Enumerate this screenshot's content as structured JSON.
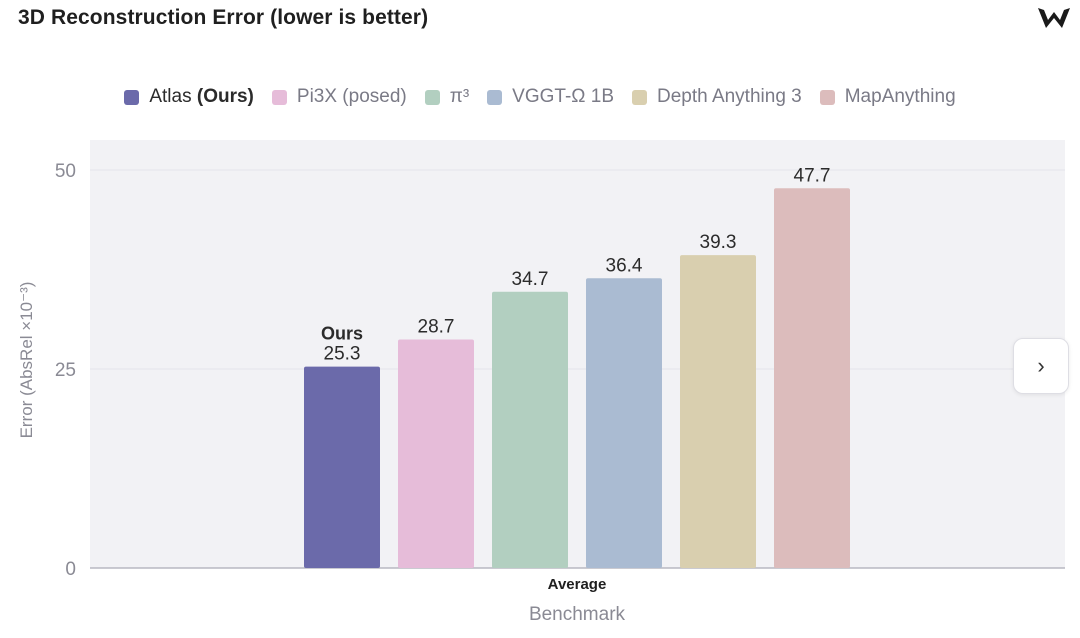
{
  "header": {
    "title": "3D Reconstruction Error (lower is better)",
    "logo_icon": "logo-icon"
  },
  "legend": {
    "placement": "top-center",
    "items": [
      {
        "name": "Atlas",
        "suffix": "(Ours)",
        "color": "#6b6aaa"
      },
      {
        "name": "Pi3X (posed)",
        "suffix": "",
        "color": "#e6bcd9"
      },
      {
        "name": "π³",
        "suffix": "",
        "color": "#b2cfc0"
      },
      {
        "name": "VGGT-Ω 1B",
        "suffix": "",
        "color": "#aabbd2"
      },
      {
        "name": "Depth Anything 3",
        "suffix": "",
        "color": "#d9cfaf"
      },
      {
        "name": "MapAnything",
        "suffix": "",
        "color": "#dcbcbc"
      }
    ]
  },
  "chart_data": {
    "type": "bar",
    "categories": [
      "Average"
    ],
    "series": [
      {
        "name": "Atlas (Ours)",
        "values": [
          25.3
        ],
        "color": "#6b6aaa",
        "annotation": "Ours"
      },
      {
        "name": "Pi3X (posed)",
        "values": [
          28.7
        ],
        "color": "#e6bcd9"
      },
      {
        "name": "π³",
        "values": [
          34.7
        ],
        "color": "#b2cfc0"
      },
      {
        "name": "VGGT-Ω 1B",
        "values": [
          36.4
        ],
        "color": "#aabbd2"
      },
      {
        "name": "Depth Anything 3",
        "values": [
          39.3
        ],
        "color": "#d9cfaf"
      },
      {
        "name": "MapAnything",
        "values": [
          47.7
        ],
        "color": "#dcbcbc"
      }
    ],
    "xlabel": "Benchmark",
    "ylabel": "Error (AbsRel ×10⁻³)",
    "ylim": [
      0,
      50
    ],
    "yticks": [
      0,
      25,
      50
    ],
    "grid": true,
    "plot_background": "#f2f2f5"
  },
  "navigation": {
    "next_icon": "chevron-right-icon",
    "next_symbol": "›"
  }
}
